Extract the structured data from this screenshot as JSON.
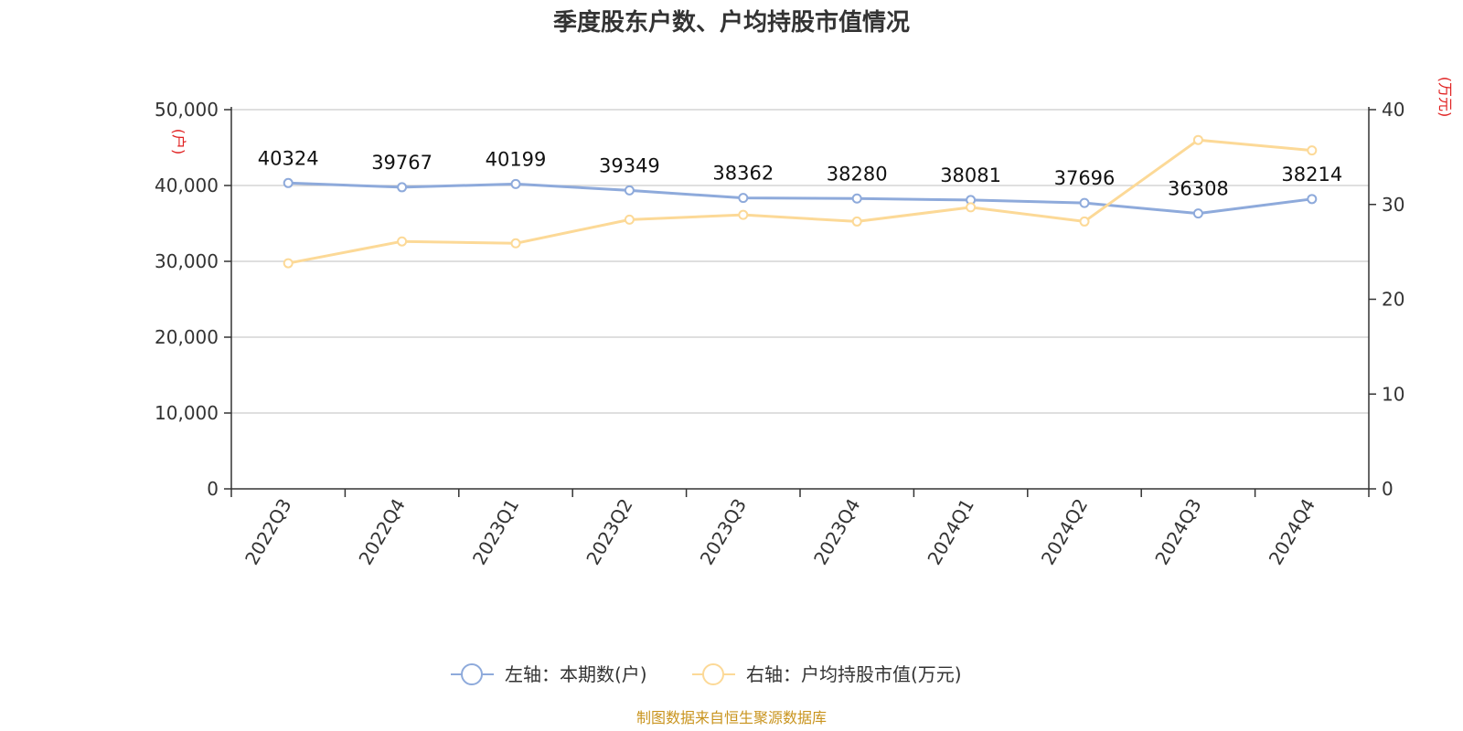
{
  "chart_data": {
    "type": "line",
    "title": "季度股东户数、户均持股市值情况",
    "categories": [
      "2022Q3",
      "2022Q4",
      "2023Q1",
      "2023Q2",
      "2023Q3",
      "2023Q4",
      "2024Q1",
      "2024Q2",
      "2024Q3",
      "2024Q4"
    ],
    "left_axis": {
      "unit": "(户)",
      "ylim": [
        0,
        50000
      ],
      "ticks": [
        "0",
        "10,000",
        "20,000",
        "30,000",
        "40,000",
        "50,000"
      ],
      "tick_values": [
        0,
        10000,
        20000,
        30000,
        40000,
        50000
      ]
    },
    "right_axis": {
      "unit": "(万元)",
      "ylim": [
        0,
        40
      ],
      "ticks": [
        "0",
        "10",
        "20",
        "30",
        "40"
      ],
      "tick_values": [
        0,
        10,
        20,
        30,
        40
      ]
    },
    "series": [
      {
        "name": "左轴：本期数(户)",
        "axis": "left",
        "color": "#8eaadb",
        "values": [
          40324,
          39767,
          40199,
          39349,
          38362,
          38280,
          38081,
          37696,
          36308,
          38214
        ],
        "labels": [
          "40324",
          "39767",
          "40199",
          "39349",
          "38362",
          "38280",
          "38081",
          "37696",
          "36308",
          "38214"
        ]
      },
      {
        "name": "右轴：户均持股市值(万元)",
        "axis": "right",
        "color": "#fcd997",
        "values": [
          23.8,
          26.1,
          25.9,
          28.4,
          28.9,
          28.2,
          29.7,
          28.2,
          36.8,
          35.7
        ]
      }
    ],
    "grid": true,
    "legend_position": "bottom",
    "source": "制图数据来自恒生聚源数据库"
  }
}
